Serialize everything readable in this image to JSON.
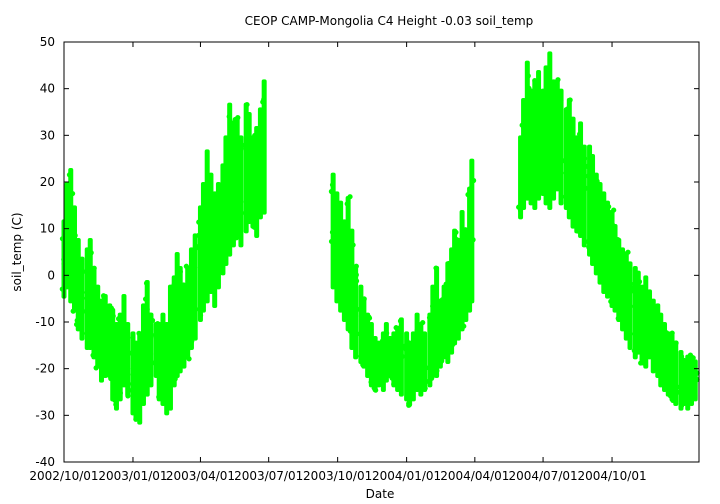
{
  "chart_data": {
    "type": "scatter",
    "title": "CEOP CAMP-Mongolia C4 Height -0.03 soil_temp",
    "xlabel": "Date",
    "ylabel": "soil_temp (C)",
    "xlim": [
      "2002-10-01",
      "2005-01-25"
    ],
    "ylim": [
      -40,
      50
    ],
    "yticks": [
      -40,
      -30,
      -20,
      -10,
      0,
      10,
      20,
      30,
      40,
      50
    ],
    "xticks": [
      {
        "date": "2002-10-01",
        "label": "2002/10/01"
      },
      {
        "date": "2003-01-01",
        "label": "2003/01/01"
      },
      {
        "date": "2003-04-01",
        "label": "2003/04/01"
      },
      {
        "date": "2003-07-01",
        "label": "2003/07/01"
      },
      {
        "date": "2003-10-01",
        "label": "2003/10/01"
      },
      {
        "date": "2004-01-01",
        "label": "2004/01/01"
      },
      {
        "date": "2004-04-01",
        "label": "2004/04/01"
      },
      {
        "date": "2004-07-01",
        "label": "2004/07/01"
      },
      {
        "date": "2004-10-01",
        "label": "2004/10/01"
      }
    ],
    "grid": false,
    "legend": "none",
    "series": [
      {
        "color": "#00ff00",
        "points": [
          {
            "x": "2002-10-01",
            "ymin": -5,
            "ymax": 12
          },
          {
            "x": "2002-10-05",
            "ymin": -3,
            "ymax": 20
          },
          {
            "x": "2002-10-10",
            "ymin": -6,
            "ymax": 23
          },
          {
            "x": "2002-10-15",
            "ymin": -8,
            "ymax": 15
          },
          {
            "x": "2002-10-20",
            "ymin": -12,
            "ymax": 8
          },
          {
            "x": "2002-10-25",
            "ymin": -14,
            "ymax": 4
          },
          {
            "x": "2002-11-01",
            "ymin": -16,
            "ymax": 6
          },
          {
            "x": "2002-11-05",
            "ymin": -16,
            "ymax": 8
          },
          {
            "x": "2002-11-10",
            "ymin": -18,
            "ymax": 2
          },
          {
            "x": "2002-11-15",
            "ymin": -20,
            "ymax": -2
          },
          {
            "x": "2002-11-20",
            "ymin": -23,
            "ymax": -5
          },
          {
            "x": "2002-11-25",
            "ymin": -22,
            "ymax": -4
          },
          {
            "x": "2002-12-01",
            "ymin": -22,
            "ymax": -6
          },
          {
            "x": "2002-12-05",
            "ymin": -27,
            "ymax": -7
          },
          {
            "x": "2002-12-10",
            "ymin": -29,
            "ymax": -10
          },
          {
            "x": "2002-12-15",
            "ymin": -27,
            "ymax": -8
          },
          {
            "x": "2002-12-20",
            "ymin": -24,
            "ymax": -4
          },
          {
            "x": "2002-12-25",
            "ymin": -26,
            "ymax": -10
          },
          {
            "x": "2003-01-01",
            "ymin": -30,
            "ymax": -12
          },
          {
            "x": "2003-01-05",
            "ymin": -31,
            "ymax": -14
          },
          {
            "x": "2003-01-10",
            "ymin": -32,
            "ymax": -12
          },
          {
            "x": "2003-01-15",
            "ymin": -28,
            "ymax": -6
          },
          {
            "x": "2003-01-20",
            "ymin": -26,
            "ymax": -1
          },
          {
            "x": "2003-01-25",
            "ymin": -24,
            "ymax": -8
          },
          {
            "x": "2003-02-01",
            "ymin": -22,
            "ymax": -10
          },
          {
            "x": "2003-02-05",
            "ymin": -27,
            "ymax": -10
          },
          {
            "x": "2003-02-10",
            "ymin": -28,
            "ymax": -8
          },
          {
            "x": "2003-02-15",
            "ymin": -30,
            "ymax": -10
          },
          {
            "x": "2003-02-20",
            "ymin": -29,
            "ymax": -2
          },
          {
            "x": "2003-02-25",
            "ymin": -24,
            "ymax": 0
          },
          {
            "x": "2003-03-01",
            "ymin": -22,
            "ymax": 5
          },
          {
            "x": "2003-03-05",
            "ymin": -21,
            "ymax": 2
          },
          {
            "x": "2003-03-10",
            "ymin": -20,
            "ymax": -2
          },
          {
            "x": "2003-03-15",
            "ymin": -18,
            "ymax": 2
          },
          {
            "x": "2003-03-20",
            "ymin": -16,
            "ymax": 6
          },
          {
            "x": "2003-03-25",
            "ymin": -14,
            "ymax": 9
          },
          {
            "x": "2003-04-01",
            "ymin": -10,
            "ymax": 15
          },
          {
            "x": "2003-04-05",
            "ymin": -8,
            "ymax": 20
          },
          {
            "x": "2003-04-10",
            "ymin": -6,
            "ymax": 27
          },
          {
            "x": "2003-04-15",
            "ymin": -4,
            "ymax": 22
          },
          {
            "x": "2003-04-20",
            "ymin": -7,
            "ymax": 18
          },
          {
            "x": "2003-04-25",
            "ymin": -3,
            "ymax": 20
          },
          {
            "x": "2003-05-01",
            "ymin": 0,
            "ymax": 24
          },
          {
            "x": "2003-05-05",
            "ymin": 2,
            "ymax": 30
          },
          {
            "x": "2003-05-10",
            "ymin": 4,
            "ymax": 37
          },
          {
            "x": "2003-05-15",
            "ymin": 6,
            "ymax": 33
          },
          {
            "x": "2003-05-20",
            "ymin": 8,
            "ymax": 34
          },
          {
            "x": "2003-05-25",
            "ymin": 6,
            "ymax": 30
          },
          {
            "x": "2003-06-01",
            "ymin": 9,
            "ymax": 37
          },
          {
            "x": "2003-06-05",
            "ymin": 11,
            "ymax": 35
          },
          {
            "x": "2003-06-10",
            "ymin": 10,
            "ymax": 30
          },
          {
            "x": "2003-06-15",
            "ymin": 8,
            "ymax": 32
          },
          {
            "x": "2003-06-20",
            "ymin": 12,
            "ymax": 36
          },
          {
            "x": "2003-06-25",
            "ymin": 13,
            "ymax": 42
          },
          {
            "x": "2003-09-25",
            "ymin": -3,
            "ymax": 22
          },
          {
            "x": "2003-09-30",
            "ymin": -6,
            "ymax": 18
          },
          {
            "x": "2003-10-05",
            "ymin": -8,
            "ymax": 16
          },
          {
            "x": "2003-10-10",
            "ymin": -10,
            "ymax": 12
          },
          {
            "x": "2003-10-15",
            "ymin": -12,
            "ymax": 17
          },
          {
            "x": "2003-10-20",
            "ymin": -16,
            "ymax": 10
          },
          {
            "x": "2003-10-25",
            "ymin": -18,
            "ymax": 2
          },
          {
            "x": "2003-11-01",
            "ymin": -19,
            "ymax": -2
          },
          {
            "x": "2003-11-05",
            "ymin": -20,
            "ymax": -5
          },
          {
            "x": "2003-11-10",
            "ymin": -22,
            "ymax": -8
          },
          {
            "x": "2003-11-15",
            "ymin": -24,
            "ymax": -10
          },
          {
            "x": "2003-11-20",
            "ymin": -25,
            "ymax": -13
          },
          {
            "x": "2003-11-25",
            "ymin": -24,
            "ymax": -14
          },
          {
            "x": "2003-12-01",
            "ymin": -25,
            "ymax": -12
          },
          {
            "x": "2003-12-05",
            "ymin": -23,
            "ymax": -10
          },
          {
            "x": "2003-12-10",
            "ymin": -22,
            "ymax": -13
          },
          {
            "x": "2003-12-15",
            "ymin": -24,
            "ymax": -12
          },
          {
            "x": "2003-12-20",
            "ymin": -25,
            "ymax": -11
          },
          {
            "x": "2003-12-25",
            "ymin": -26,
            "ymax": -9
          },
          {
            "x": "2004-01-01",
            "ymin": -27,
            "ymax": -12
          },
          {
            "x": "2004-01-05",
            "ymin": -28,
            "ymax": -14
          },
          {
            "x": "2004-01-10",
            "ymin": -27,
            "ymax": -12
          },
          {
            "x": "2004-01-15",
            "ymin": -25,
            "ymax": -8
          },
          {
            "x": "2004-01-20",
            "ymin": -26,
            "ymax": -10
          },
          {
            "x": "2004-01-25",
            "ymin": -25,
            "ymax": -12
          },
          {
            "x": "2004-02-01",
            "ymin": -24,
            "ymax": -8
          },
          {
            "x": "2004-02-05",
            "ymin": -22,
            "ymax": -2
          },
          {
            "x": "2004-02-10",
            "ymin": -22,
            "ymax": 2
          },
          {
            "x": "2004-02-15",
            "ymin": -20,
            "ymax": -5
          },
          {
            "x": "2004-02-20",
            "ymin": -18,
            "ymax": -2
          },
          {
            "x": "2004-02-25",
            "ymin": -19,
            "ymax": 3
          },
          {
            "x": "2004-03-01",
            "ymin": -17,
            "ymax": 6
          },
          {
            "x": "2004-03-05",
            "ymin": -15,
            "ymax": 10
          },
          {
            "x": "2004-03-10",
            "ymin": -14,
            "ymax": 8
          },
          {
            "x": "2004-03-15",
            "ymin": -12,
            "ymax": 14
          },
          {
            "x": "2004-03-20",
            "ymin": -10,
            "ymax": 10
          },
          {
            "x": "2004-03-25",
            "ymin": -8,
            "ymax": 19
          },
          {
            "x": "2004-03-28",
            "ymin": -6,
            "ymax": 25
          },
          {
            "x": "2004-06-01",
            "ymin": 12,
            "ymax": 30
          },
          {
            "x": "2004-06-05",
            "ymin": 14,
            "ymax": 38
          },
          {
            "x": "2004-06-10",
            "ymin": 16,
            "ymax": 46
          },
          {
            "x": "2004-06-15",
            "ymin": 15,
            "ymax": 40
          },
          {
            "x": "2004-06-20",
            "ymin": 14,
            "ymax": 42
          },
          {
            "x": "2004-06-25",
            "ymin": 16,
            "ymax": 44
          },
          {
            "x": "2004-07-01",
            "ymin": 17,
            "ymax": 40
          },
          {
            "x": "2004-07-05",
            "ymin": 15,
            "ymax": 45
          },
          {
            "x": "2004-07-10",
            "ymin": 14,
            "ymax": 48
          },
          {
            "x": "2004-07-15",
            "ymin": 16,
            "ymax": 42
          },
          {
            "x": "2004-07-20",
            "ymin": 18,
            "ymax": 42
          },
          {
            "x": "2004-07-25",
            "ymin": 15,
            "ymax": 40
          },
          {
            "x": "2004-08-01",
            "ymin": 14,
            "ymax": 36
          },
          {
            "x": "2004-08-05",
            "ymin": 12,
            "ymax": 38
          },
          {
            "x": "2004-08-10",
            "ymin": 10,
            "ymax": 34
          },
          {
            "x": "2004-08-15",
            "ymin": 9,
            "ymax": 30
          },
          {
            "x": "2004-08-20",
            "ymin": 8,
            "ymax": 33
          },
          {
            "x": "2004-08-25",
            "ymin": 6,
            "ymax": 28
          },
          {
            "x": "2004-09-01",
            "ymin": 4,
            "ymax": 28
          },
          {
            "x": "2004-09-05",
            "ymin": 2,
            "ymax": 26
          },
          {
            "x": "2004-09-10",
            "ymin": 0,
            "ymax": 22
          },
          {
            "x": "2004-09-15",
            "ymin": -2,
            "ymax": 20
          },
          {
            "x": "2004-09-20",
            "ymin": -4,
            "ymax": 18
          },
          {
            "x": "2004-09-25",
            "ymin": -5,
            "ymax": 16
          },
          {
            "x": "2004-10-01",
            "ymin": -7,
            "ymax": 14
          },
          {
            "x": "2004-10-05",
            "ymin": -8,
            "ymax": 11
          },
          {
            "x": "2004-10-10",
            "ymin": -10,
            "ymax": 8
          },
          {
            "x": "2004-10-15",
            "ymin": -12,
            "ymax": 6
          },
          {
            "x": "2004-10-20",
            "ymin": -14,
            "ymax": 5
          },
          {
            "x": "2004-10-25",
            "ymin": -16,
            "ymax": 3
          },
          {
            "x": "2004-11-01",
            "ymin": -18,
            "ymax": 2
          },
          {
            "x": "2004-11-05",
            "ymin": -17,
            "ymax": 1
          },
          {
            "x": "2004-11-10",
            "ymin": -19,
            "ymax": -2
          },
          {
            "x": "2004-11-15",
            "ymin": -20,
            "ymax": 0
          },
          {
            "x": "2004-11-20",
            "ymin": -18,
            "ymax": -3
          },
          {
            "x": "2004-11-25",
            "ymin": -21,
            "ymax": -5
          },
          {
            "x": "2004-12-01",
            "ymin": -22,
            "ymax": -6
          },
          {
            "x": "2004-12-05",
            "ymin": -24,
            "ymax": -8
          },
          {
            "x": "2004-12-10",
            "ymin": -25,
            "ymax": -10
          },
          {
            "x": "2004-12-15",
            "ymin": -26,
            "ymax": -12
          },
          {
            "x": "2004-12-20",
            "ymin": -27,
            "ymax": -12
          },
          {
            "x": "2004-12-25",
            "ymin": -28,
            "ymax": -14
          },
          {
            "x": "2005-01-01",
            "ymin": -29,
            "ymax": -16
          },
          {
            "x": "2005-01-05",
            "ymin": -28,
            "ymax": -18
          },
          {
            "x": "2005-01-10",
            "ymin": -29,
            "ymax": -17
          },
          {
            "x": "2005-01-15",
            "ymin": -28,
            "ymax": -17
          },
          {
            "x": "2005-01-20",
            "ymin": -27,
            "ymax": -18
          }
        ]
      }
    ]
  }
}
